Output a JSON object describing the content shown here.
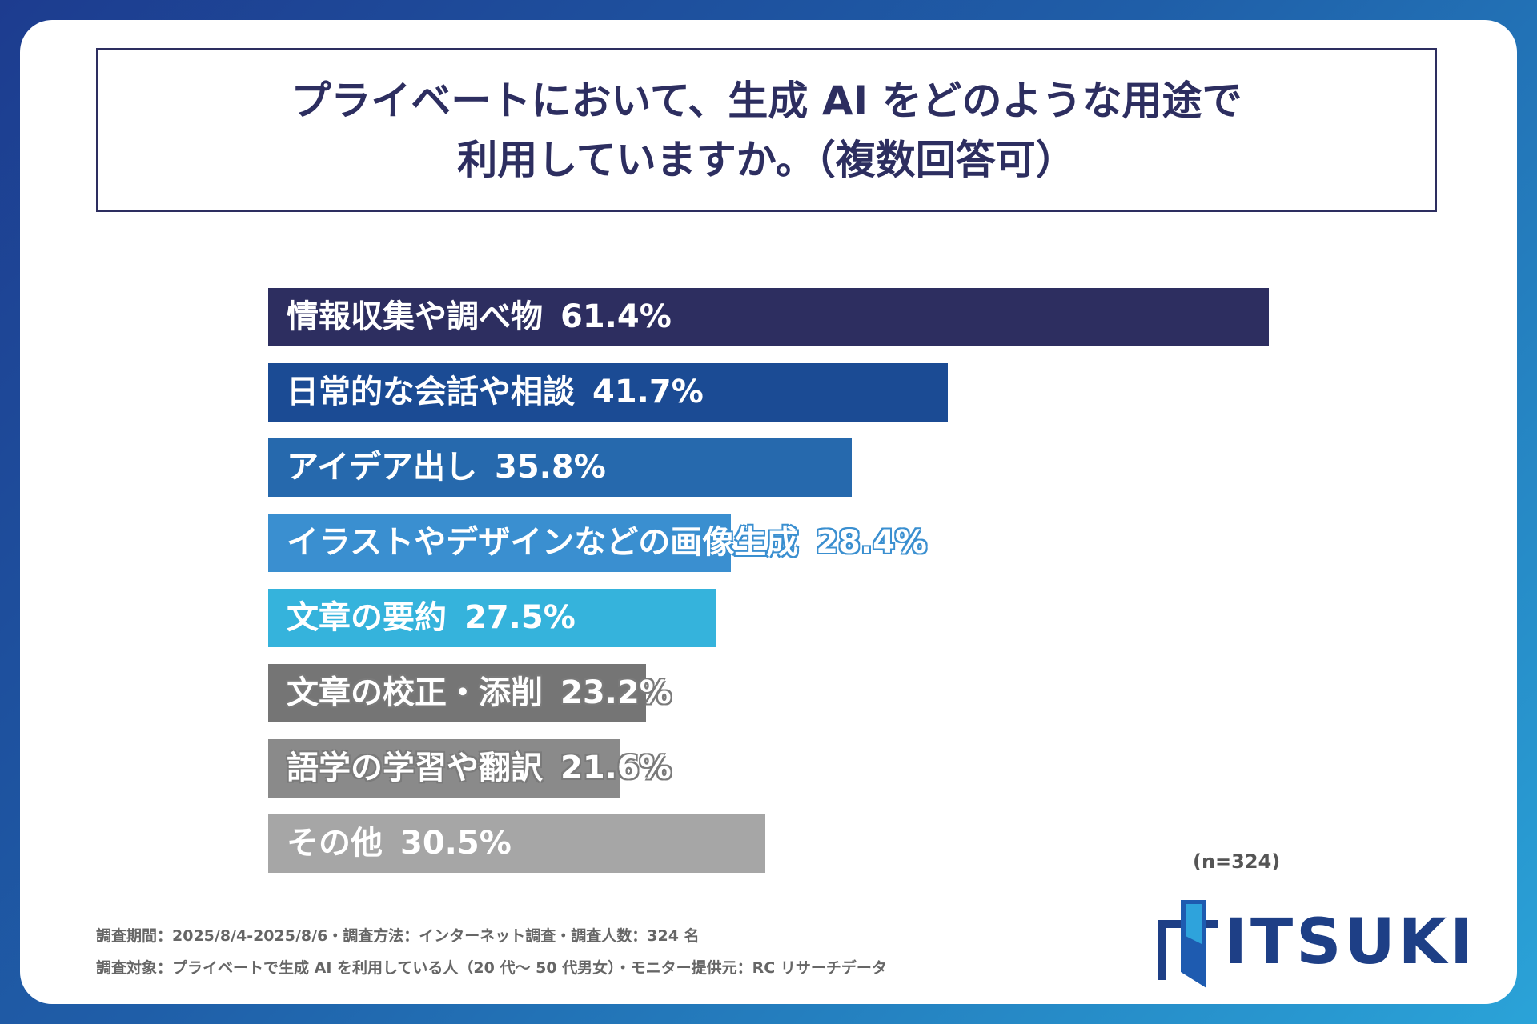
{
  "title": {
    "line1": "プライベートにおいて、生成 AI をどのような用途で",
    "line2": "利用していますか。（複数回答可）"
  },
  "chart_data": {
    "type": "bar",
    "orientation": "horizontal",
    "title": "プライベートにおいて、生成 AI をどのような用途で利用していますか。（複数回答可）",
    "unit": "%",
    "categories": [
      "情報収集や調べ物",
      "日常的な会話や相談",
      "アイデア出し",
      "イラストやデザインなどの画像生成",
      "文章の要約",
      "文章の校正・添削",
      "語学の学習や翻訳",
      "その他"
    ],
    "values": [
      61.4,
      41.7,
      35.8,
      28.4,
      27.5,
      23.2,
      21.6,
      30.5
    ],
    "value_labels": [
      "61.4%",
      "41.7%",
      "35.8%",
      "28.4%",
      "27.5%",
      "23.2%",
      "21.6%",
      "30.5%"
    ],
    "colors": [
      "#2d2e60",
      "#1b4b94",
      "#2669ad",
      "#3a8fd0",
      "#35b3dc",
      "#757575",
      "#8a8a8a",
      "#a6a6a6"
    ],
    "xlim": [
      0,
      100
    ]
  },
  "sample_size": "(n=324)",
  "footnotes": {
    "line1": "調査期間：2025/8/4-2025/8/6・調査方法：インターネット調査・調査人数：324 名",
    "line2": "調査対象：プライベートで生成 AI を利用している人（20 代〜 50 代男女）・モニター提供元：RC リサーチデータ"
  },
  "logo": {
    "text": "ITSUKI"
  }
}
